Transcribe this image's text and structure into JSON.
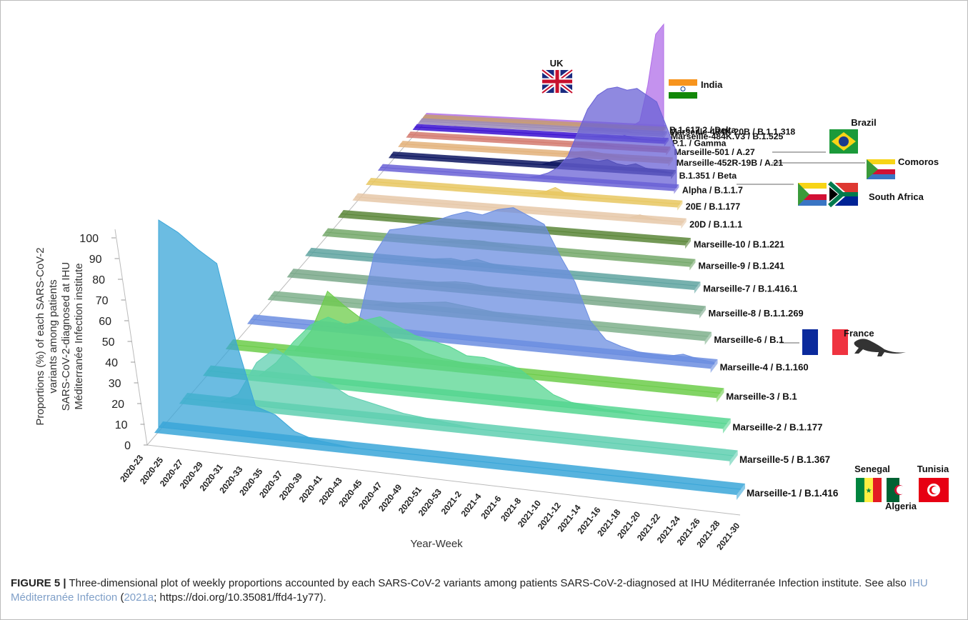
{
  "chart_data": {
    "type": "ribbon3d",
    "ylabel": "Proportions (%) of each SARS-CoV-2 variants among patients SARS-CoV-2-diagnosed at IHU Méditerranée Infection institute",
    "xlabel": "Year-Week",
    "ylim": [
      0,
      100
    ],
    "yticks": [
      0,
      10,
      20,
      30,
      40,
      50,
      60,
      70,
      80,
      90,
      100
    ],
    "categories": [
      "2020-23",
      "2020-25",
      "2020-27",
      "2020-29",
      "2020-31",
      "2020-33",
      "2020-35",
      "2020-37",
      "2020-39",
      "2020-41",
      "2020-43",
      "2020-45",
      "2020-47",
      "2020-49",
      "2020-51",
      "2020-53",
      "2021-2",
      "2021-4",
      "2021-6",
      "2021-8",
      "2021-10",
      "2021-12",
      "2021-14",
      "2021-16",
      "2021-18",
      "2021-20",
      "2021-22",
      "2021-24",
      "2021-26",
      "2021-28",
      "2021-30"
    ],
    "series": [
      {
        "name": "Marseille-1 / B.1.416",
        "color": "#3aa6d8",
        "values": [
          100,
          95,
          88,
          82,
          45,
          15,
          12,
          5,
          2,
          1,
          0,
          0,
          0,
          0,
          0,
          0,
          0,
          0,
          0,
          0,
          0,
          0,
          0,
          0,
          0,
          0,
          0,
          0,
          0,
          0,
          0
        ]
      },
      {
        "name": "Marseille-5 / B.1.367",
        "color": "#5fcfb0",
        "values": [
          0,
          0,
          0,
          5,
          22,
          30,
          25,
          18,
          15,
          10,
          8,
          6,
          4,
          3,
          2,
          1,
          0,
          0,
          0,
          0,
          0,
          0,
          0,
          0,
          0,
          0,
          0,
          0,
          0,
          0,
          0
        ]
      },
      {
        "name": "Marseille-2 / B.1.177",
        "color": "#55d690",
        "values": [
          0,
          0,
          0,
          0,
          8,
          20,
          30,
          35,
          32,
          35,
          38,
          34,
          30,
          28,
          26,
          22,
          22,
          20,
          18,
          12,
          6,
          3,
          2,
          1,
          1,
          0,
          0,
          0,
          0,
          0,
          0
        ]
      },
      {
        "name": "Marseille-3 / B.1",
        "color": "#6ccc4a",
        "values": [
          0,
          0,
          0,
          0,
          0,
          12,
          35,
          28,
          22,
          18,
          12,
          10,
          6,
          4,
          3,
          2,
          1,
          0,
          0,
          0,
          0,
          0,
          0,
          0,
          0,
          0,
          0,
          0,
          0,
          0,
          0
        ]
      },
      {
        "name": "Marseille-4 / B.1.160",
        "color": "#6b8de0",
        "values": [
          0,
          0,
          0,
          0,
          0,
          0,
          0,
          5,
          45,
          60,
          62,
          65,
          68,
          72,
          75,
          74,
          78,
          80,
          76,
          72,
          55,
          40,
          18,
          8,
          5,
          3,
          2,
          2,
          4,
          2,
          1
        ]
      },
      {
        "name": "Marseille-6 / B.1",
        "color": "#7fb08c",
        "values": [
          0,
          0,
          0,
          0,
          0,
          0,
          0,
          0,
          2,
          3,
          4,
          5,
          6,
          5,
          4,
          3,
          2,
          1,
          1,
          0,
          0,
          0,
          0,
          0,
          0,
          0,
          0,
          0,
          0,
          0,
          0
        ]
      },
      {
        "name": "Marseille-8 / B.1.1.269",
        "color": "#7aa88a",
        "values": [
          0,
          0,
          0,
          0,
          0,
          0,
          0,
          0,
          0,
          1,
          2,
          3,
          4,
          4,
          3,
          2,
          1,
          0,
          0,
          0,
          0,
          0,
          0,
          0,
          0,
          0,
          0,
          0,
          0,
          0,
          0
        ]
      },
      {
        "name": "Marseille-7 / B.1.416.1",
        "color": "#5fa3a0",
        "values": [
          0,
          0,
          0,
          0,
          0,
          0,
          0,
          0,
          0,
          2,
          3,
          4,
          3,
          5,
          3,
          2,
          1,
          0,
          0,
          0,
          0,
          0,
          0,
          0,
          0,
          0,
          0,
          0,
          0,
          0,
          0
        ]
      },
      {
        "name": "Marseille-9 / B.1.241",
        "color": "#74a86a",
        "values": [
          0,
          0,
          0,
          0,
          0,
          0,
          0,
          0,
          0,
          0,
          1,
          2,
          3,
          3,
          2,
          1,
          0,
          0,
          0,
          0,
          0,
          0,
          0,
          0,
          0,
          0,
          0,
          0,
          0,
          0,
          0
        ]
      },
      {
        "name": "Marseille-10 / B.1.221",
        "color": "#5a8638",
        "values": [
          0,
          0,
          0,
          0,
          0,
          0,
          0,
          0,
          0,
          0,
          0,
          1,
          2,
          2,
          1,
          1,
          0,
          0,
          0,
          0,
          0,
          0,
          0,
          0,
          0,
          0,
          0,
          0,
          0,
          0,
          0
        ]
      },
      {
        "name": "20D / B.1.1.1",
        "color": "#e6c8a8",
        "values": [
          0,
          0,
          0,
          0,
          0,
          0,
          0,
          0,
          0,
          0,
          0,
          0,
          0,
          0,
          0,
          0,
          0,
          0,
          0,
          0,
          0,
          0,
          0,
          0,
          0,
          0,
          3,
          1,
          0,
          0,
          0
        ]
      },
      {
        "name": "20E / B.1.177",
        "color": "#e8c760",
        "values": [
          0,
          0,
          0,
          0,
          0,
          0,
          0,
          0,
          0,
          0,
          0,
          0,
          0,
          0,
          0,
          0,
          0,
          2,
          6,
          2,
          1,
          0,
          0,
          0,
          0,
          0,
          0,
          0,
          0,
          0,
          0
        ]
      },
      {
        "name": "Alpha / B.1.1.7",
        "color": "#6a62d6",
        "values": [
          0,
          0,
          0,
          0,
          0,
          0,
          0,
          0,
          0,
          0,
          0,
          0,
          0,
          0,
          0,
          0,
          2,
          5,
          10,
          20,
          40,
          60,
          72,
          78,
          80,
          78,
          80,
          75,
          70,
          50,
          30
        ]
      },
      {
        "name": "B.1.351 / Beta",
        "color": "#0c1560",
        "values": [
          0,
          0,
          0,
          0,
          0,
          0,
          0,
          0,
          0,
          0,
          0,
          0,
          0,
          0,
          0,
          0,
          0,
          3,
          5,
          6,
          8,
          7,
          6,
          8,
          5,
          4,
          6,
          3,
          2,
          1,
          0
        ]
      },
      {
        "name": "Marseille-452R-19B / A.21",
        "color": "#e3b27a",
        "values": [
          0,
          0,
          0,
          0,
          0,
          0,
          0,
          0,
          0,
          0,
          0,
          0,
          0,
          0,
          0,
          0,
          0,
          0,
          0,
          2,
          3,
          4,
          3,
          2,
          1,
          0,
          0,
          0,
          0,
          0,
          0
        ]
      },
      {
        "name": "Marseille-501 / A.27",
        "color": "#d47a6e",
        "values": [
          0,
          0,
          0,
          0,
          0,
          0,
          0,
          0,
          0,
          0,
          0,
          0,
          0,
          0,
          0,
          0,
          0,
          0,
          0,
          0,
          1,
          1,
          2,
          1,
          0,
          0,
          0,
          0,
          0,
          0,
          0
        ]
      },
      {
        "name": "P.1. / Gamma",
        "color": "#3a10d0",
        "values": [
          0,
          0,
          0,
          0,
          0,
          0,
          0,
          0,
          0,
          0,
          0,
          0,
          0,
          0,
          0,
          0,
          0,
          0,
          0,
          0,
          0,
          0,
          1,
          2,
          1,
          3,
          1,
          0,
          0,
          0,
          0
        ]
      },
      {
        "name": "Marseille-484K.V3 / B.1.525",
        "color": "#9a88b6",
        "values": [
          0,
          0,
          0,
          0,
          0,
          0,
          0,
          0,
          0,
          0,
          0,
          0,
          0,
          0,
          0,
          0,
          0,
          0,
          0,
          0,
          0,
          1,
          2,
          2,
          1,
          2,
          0,
          0,
          0,
          0,
          0
        ]
      },
      {
        "name": "Marseille-484K-20B / B.1.1.318",
        "color": "#c79e72",
        "values": [
          0,
          0,
          0,
          0,
          0,
          0,
          0,
          0,
          0,
          0,
          0,
          0,
          0,
          0,
          0,
          0,
          0,
          0,
          0,
          0,
          1,
          1,
          2,
          1,
          1,
          0,
          0,
          0,
          0,
          0,
          0
        ]
      },
      {
        "name": "B.1.617.2 / Delta",
        "color": "#b06ee8",
        "values": [
          0,
          0,
          0,
          0,
          0,
          0,
          0,
          0,
          0,
          0,
          0,
          0,
          0,
          0,
          0,
          0,
          0,
          0,
          0,
          0,
          0,
          0,
          0,
          0,
          0,
          0,
          0,
          5,
          40,
          90,
          100
        ]
      }
    ],
    "annotations": [
      "UK",
      "India",
      "Brazil",
      "Comoros",
      "South Africa",
      "France",
      "Senegal",
      "Tunisia",
      "Algeria"
    ]
  },
  "caption": {
    "label": "FIGURE 5 |",
    "text1": "Three-dimensional plot of weekly proportions accounted by each SARS-CoV-2 variants among patients SARS-CoV-2-diagnosed at IHU Méditerranée Infection institute. See also",
    "link1": "IHU Méditerranée Infection",
    "text2": "(",
    "link2": "2021a",
    "text3": "; https://doi.org/10.35081/ffd4-1y77)."
  }
}
